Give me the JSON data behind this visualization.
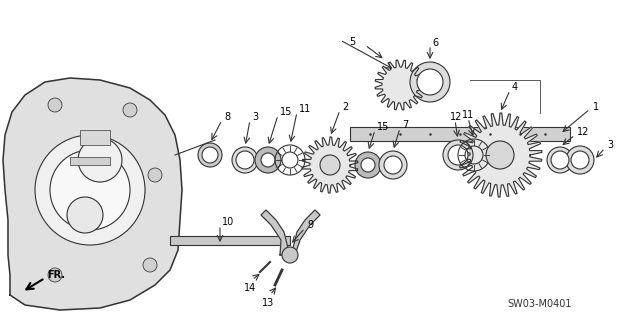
{
  "title": "",
  "background_color": "#ffffff",
  "diagram_code": "SW03-M0401",
  "fr_label": "FR.",
  "part_numbers": [
    1,
    2,
    3,
    4,
    5,
    6,
    7,
    8,
    9,
    10,
    11,
    12,
    13,
    14,
    15
  ],
  "fig_width": 6.4,
  "fig_height": 3.19,
  "dpi": 100,
  "line_color": "#333333",
  "line_width": 0.8
}
